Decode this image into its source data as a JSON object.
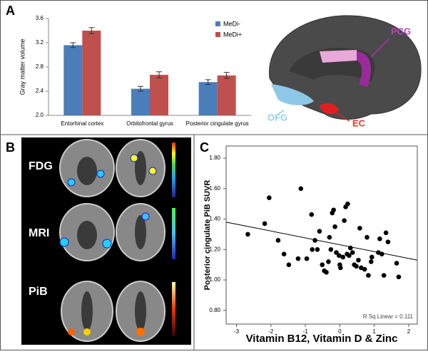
{
  "panel_labels": [
    "A",
    "B",
    "C"
  ],
  "region_labels": {
    "pcg": "PCG",
    "ofg": "OFG",
    "ec": "EC"
  },
  "modalities": [
    "FDG",
    "MRI",
    "PiB"
  ],
  "chart_data": [
    {
      "type": "bar",
      "y_label": "Gray matter volume",
      "categories": [
        "Entorhinal cortex",
        "Orbitofrontal gyrus",
        "Posterior cingulate gyrus"
      ],
      "series": [
        {
          "name": "MeDi-",
          "color": "#4a7ebb",
          "values": [
            3.16,
            2.44,
            2.55
          ],
          "errors": [
            0.04,
            0.04,
            0.04
          ]
        },
        {
          "name": "MeDi+",
          "color": "#c0504d",
          "values": [
            3.4,
            2.67,
            2.66
          ],
          "errors": [
            0.05,
            0.05,
            0.05
          ]
        }
      ],
      "ylim": [
        2.0,
        3.6
      ],
      "yticks": [
        {
          "value": 2,
          "label": "2.0"
        },
        2.4,
        2.8,
        3.2,
        3.6
      ],
      "legend": "top-right"
    },
    {
      "type": "scatter",
      "x_label": "Vitamin  B12, Vitamin D & Zinc",
      "y_label": "Posterior cingulate PiB SUVR",
      "annotation": "R Sq Linear = 0.111",
      "color": "#000000",
      "x": [
        -2.67,
        -2.18,
        -2.05,
        -1.79,
        -1.62,
        -1.48,
        -1.21,
        -1.13,
        -0.96,
        -0.82,
        -0.8,
        -0.72,
        -0.65,
        -0.59,
        -0.51,
        -0.45,
        -0.39,
        -0.33,
        -0.3,
        -0.26,
        -0.22,
        -0.18,
        -0.14,
        -0.1,
        -0.02,
        0.0,
        0.02,
        0.09,
        0.13,
        0.17,
        0.21,
        0.23,
        0.27,
        0.31,
        0.37,
        0.42,
        0.48,
        0.54,
        0.58,
        0.62,
        0.72,
        0.79,
        0.83,
        0.91,
        0.93,
        1.12,
        1.16,
        1.22,
        1.28,
        1.34,
        1.4,
        1.65,
        1.71
      ],
      "values": [
        1.3,
        1.37,
        1.54,
        1.26,
        1.17,
        1.1,
        1.14,
        1.6,
        1.14,
        1.43,
        1.2,
        1.26,
        1.2,
        1.32,
        1.1,
        1.06,
        1.05,
        1.12,
        1.28,
        1.2,
        1.44,
        1.46,
        1.35,
        1.18,
        1.16,
        1.1,
        1.08,
        1.15,
        1.39,
        1.48,
        1.17,
        1.5,
        1.16,
        1.21,
        1.18,
        1.1,
        1.09,
        1.13,
        1.34,
        1.08,
        1.07,
        1.28,
        1.03,
        1.12,
        1.15,
        1.18,
        1.27,
        1.17,
        1.03,
        1.31,
        1.25,
        1.11,
        1.02
      ],
      "fit_line": {
        "x": [
          -3.3,
          2.25
        ],
        "y": [
          1.38,
          1.13
        ]
      },
      "xlim": [
        -3.3,
        2.25
      ],
      "ylim": [
        0.71,
        1.88
      ],
      "xticks": [
        -3,
        -2,
        -1,
        0,
        1,
        2
      ],
      "yticks": [
        {
          "value": 0.8,
          "label": "0.80"
        },
        {
          "value": 1,
          "label": "1.00"
        },
        {
          "value": 1.2,
          "label": "1.20"
        },
        {
          "value": 1.4,
          "label": "1.40"
        },
        {
          "value": 1.6,
          "label": "1.60"
        },
        {
          "value": 1.8,
          "label": "1.80"
        }
      ]
    }
  ]
}
